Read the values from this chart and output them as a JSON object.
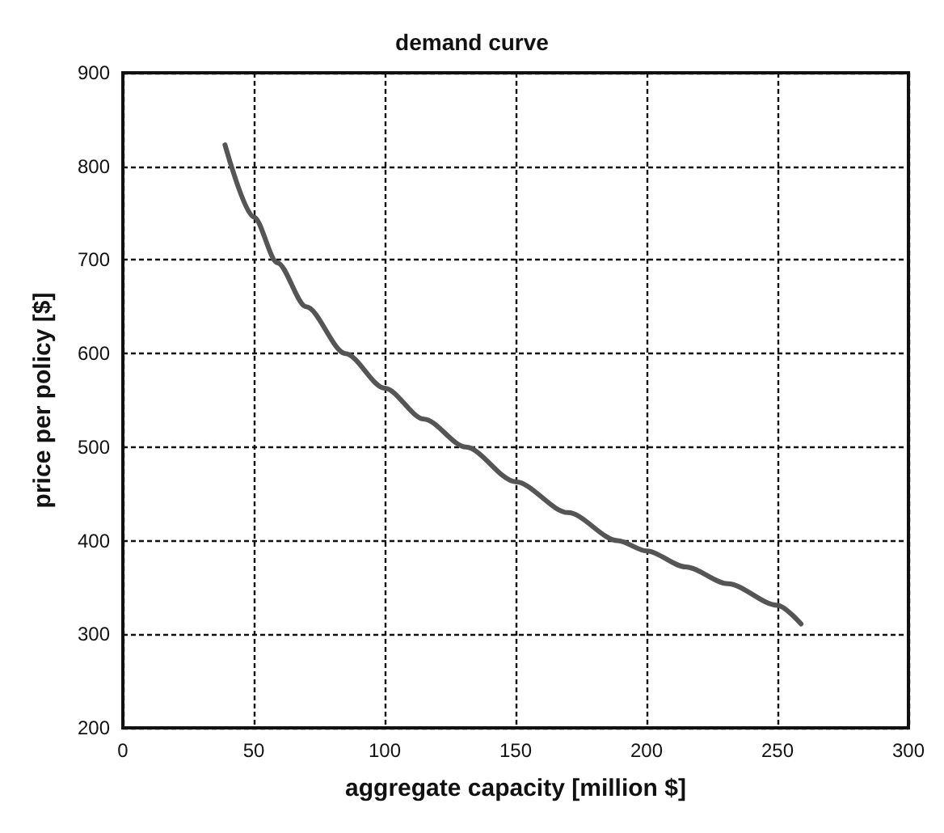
{
  "chart_data": {
    "type": "line",
    "title": "demand curve",
    "xlabel": "aggregate capacity [million $]",
    "ylabel": "price per policy [$]",
    "x": [
      39,
      50,
      59,
      70,
      85,
      100,
      115,
      131,
      150,
      170,
      189,
      200,
      215,
      231,
      250,
      259
    ],
    "series": [
      {
        "color": "#555555",
        "values": [
          823,
          746,
          697,
          650,
          600,
          563,
          530,
          500,
          463,
          430,
          400,
          389,
          372,
          354,
          331,
          311
        ]
      }
    ],
    "xlim": [
      0,
      300
    ],
    "xticks": [
      0,
      50,
      100,
      150,
      200,
      250,
      300
    ],
    "ylim": [
      200,
      900
    ],
    "yticks": [
      200,
      300,
      400,
      500,
      600,
      700,
      800,
      900
    ],
    "grid": true,
    "marker": "none",
    "line_style": "solid"
  }
}
